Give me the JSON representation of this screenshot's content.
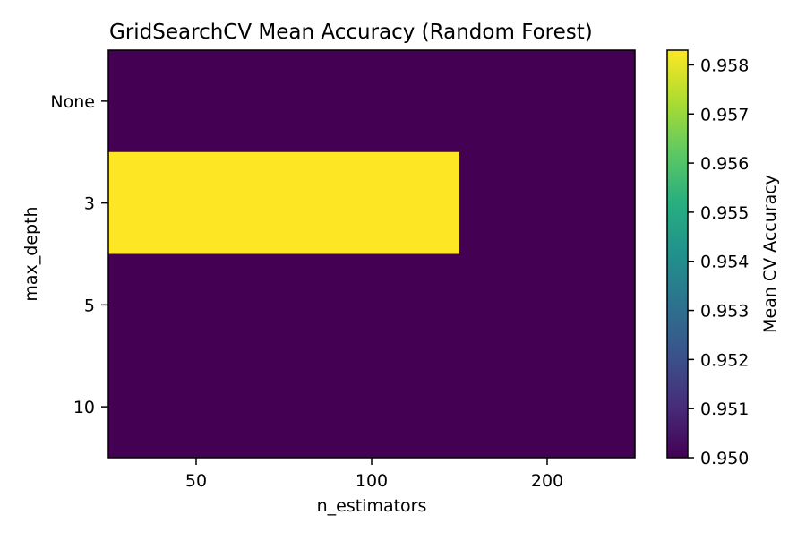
{
  "chart_data": {
    "type": "heatmap",
    "title": "GridSearchCV Mean Accuracy (Random Forest)",
    "xlabel": "n_estimators",
    "ylabel": "max_depth",
    "x_categories": [
      "50",
      "100",
      "200"
    ],
    "y_categories": [
      "None",
      "3",
      "5",
      "10"
    ],
    "values": [
      [
        0.95,
        0.95,
        0.95
      ],
      [
        0.9583,
        0.9583,
        0.95
      ],
      [
        0.95,
        0.95,
        0.95
      ],
      [
        0.95,
        0.95,
        0.95
      ]
    ],
    "colormap": "viridis",
    "color_range": [
      0.95,
      0.9583
    ],
    "colorbar": {
      "label": "Mean CV Accuracy",
      "ticks": [
        "0.950",
        "0.951",
        "0.952",
        "0.953",
        "0.954",
        "0.955",
        "0.956",
        "0.957",
        "0.958"
      ]
    }
  },
  "colors": {
    "low": "#440154",
    "high": "#fde725",
    "axis": "#000000"
  }
}
